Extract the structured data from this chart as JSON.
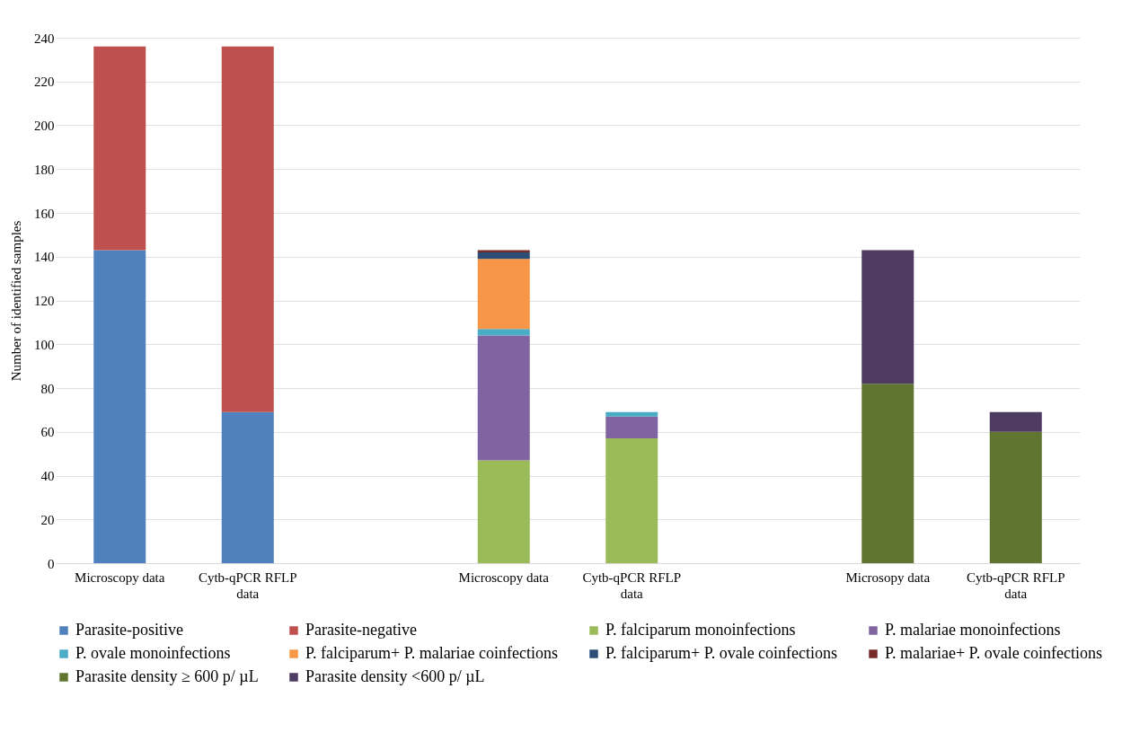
{
  "chart_data": {
    "type": "bar",
    "stacked": true,
    "ylabel": "Number of identified samples",
    "categories": [
      "Microscopy data",
      "Cytb-qPCR RFLP data",
      null,
      "Microscopy data",
      "Cytb-qPCR RFLP data",
      null,
      "Microsopy data",
      "Cytb-qPCR RFLP data"
    ],
    "ylim": [
      0,
      240
    ],
    "yticks": [
      0,
      20,
      40,
      60,
      80,
      100,
      120,
      140,
      160,
      180,
      200,
      220,
      240
    ],
    "grid": "y",
    "legend": "bottom",
    "series": [
      {
        "name": "Parasite-positive",
        "color": "#4f81bd",
        "values": [
          143,
          69,
          null,
          null,
          null,
          null,
          null,
          null
        ]
      },
      {
        "name": "Parasite-negative",
        "color": "#c0504d",
        "values": [
          93,
          167,
          null,
          null,
          null,
          null,
          null,
          null
        ]
      },
      {
        "name": "P. falciparum monoinfections",
        "color": "#9bbb59",
        "values": [
          null,
          null,
          null,
          47,
          57,
          null,
          null,
          null
        ]
      },
      {
        "name": "P. malariae monoinfections",
        "color": "#8064a2",
        "values": [
          null,
          null,
          null,
          57,
          10,
          null,
          null,
          null
        ]
      },
      {
        "name": "P. ovale monoinfections",
        "color": "#4bacc6",
        "values": [
          null,
          null,
          null,
          3,
          2,
          null,
          null,
          null
        ]
      },
      {
        "name": "P. falciparum+ P. malariae coinfections",
        "color": "#f79646",
        "values": [
          null,
          null,
          null,
          32,
          null,
          null,
          null,
          null
        ]
      },
      {
        "name": "P. falciparum+ P. ovale coinfections",
        "color": "#2c4d75",
        "values": [
          null,
          null,
          null,
          3,
          null,
          null,
          null,
          null
        ]
      },
      {
        "name": "P. malariae+ P. ovale coinfections",
        "color": "#772c2a",
        "values": [
          null,
          null,
          null,
          1,
          null,
          null,
          null,
          null
        ]
      },
      {
        "name": "Parasite density ≥ 600 p/ µL",
        "color": "#5f7530",
        "values": [
          null,
          null,
          null,
          null,
          null,
          null,
          82,
          60
        ]
      },
      {
        "name": "Parasite density <600 p/ µL",
        "color": "#4d3b62",
        "values": [
          null,
          null,
          null,
          null,
          null,
          null,
          61,
          9
        ]
      }
    ]
  }
}
